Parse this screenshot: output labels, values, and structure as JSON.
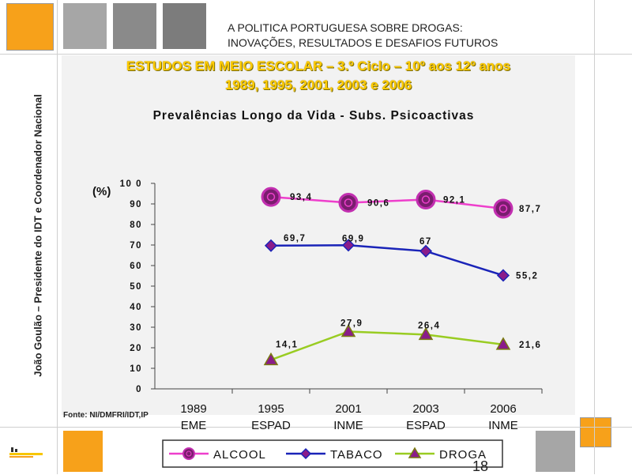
{
  "header": {
    "line1": "A POLITICA PORTUGUESA SOBRE DROGAS:",
    "line2": "INOVAÇÕES, RESULTADOS E DESAFIOS FUTUROS"
  },
  "side_text": "João Goulão – Presidente do IDT e Coordenador Nacional",
  "study": {
    "line1": "ESTUDOS EM MEIO ESCOLAR – 3.º Ciclo – 10º aos 12º anos",
    "line2": "1989, 1995, 2001, 2003 e 2006"
  },
  "source": "Fonte: NI/DMFRI/IDT,IP",
  "page_number": "18",
  "colors": {
    "orange": "#f7a11a",
    "gray1": "#a6a6a6",
    "gray2": "#8a8a8a",
    "gray3": "#7c7c7c"
  },
  "chart_data": {
    "type": "line",
    "title": "Prevalências Longo da Vida - Subs. Psicoactivas",
    "ylabel": "(%)",
    "ylim": [
      0,
      100
    ],
    "yticks": [
      "0",
      "10",
      "20",
      "30",
      "40",
      "50",
      "60",
      "70",
      "80",
      "90",
      "10 0"
    ],
    "categories": [
      {
        "year": "1989",
        "study": "EME"
      },
      {
        "year": "1995",
        "study": "ESPAD"
      },
      {
        "year": "2001",
        "study": "INME"
      },
      {
        "year": "2003",
        "study": "ESPAD"
      },
      {
        "year": "2006",
        "study": "INME"
      }
    ],
    "series": [
      {
        "name": "ALCOOL",
        "color": "#ee3fcc",
        "marker": "circle",
        "values": [
          null,
          93.4,
          90.6,
          92.1,
          87.7
        ],
        "labels": [
          "",
          "93,4",
          "90,6",
          "92,1",
          "87,7"
        ]
      },
      {
        "name": "TABACO",
        "color": "#1a24b8",
        "marker": "diamond",
        "values": [
          null,
          69.7,
          69.9,
          67,
          55.2
        ],
        "labels": [
          "",
          "69,7",
          "69,9",
          "67",
          "55,2"
        ]
      },
      {
        "name": "DROGA",
        "color": "#99cc22",
        "marker": "triangle",
        "values": [
          null,
          14.1,
          27.9,
          26.4,
          21.6
        ],
        "labels": [
          "",
          "14,1",
          "27,9",
          "26,4",
          "21,6"
        ]
      }
    ],
    "grid": false,
    "legend": "bottom"
  }
}
